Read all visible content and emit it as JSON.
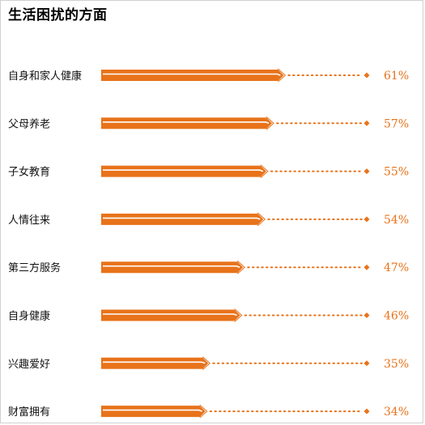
{
  "chart_data": {
    "type": "bar",
    "title": "生活困扰的方面",
    "orientation": "horizontal",
    "categories": [
      "自身和家人健康",
      "父母养老",
      "子女教育",
      "人情往来",
      "第三方服务",
      "自身健康",
      "兴趣爱好",
      "财富拥有"
    ],
    "values": [
      61,
      57,
      55,
      54,
      47,
      46,
      35,
      34
    ],
    "value_labels": [
      "61%",
      "57%",
      "55%",
      "54%",
      "47%",
      "46%",
      "35%",
      "34%"
    ],
    "bar_color": "#e8731a",
    "xlim": [
      0,
      100
    ],
    "grid": false,
    "legend": "none"
  }
}
